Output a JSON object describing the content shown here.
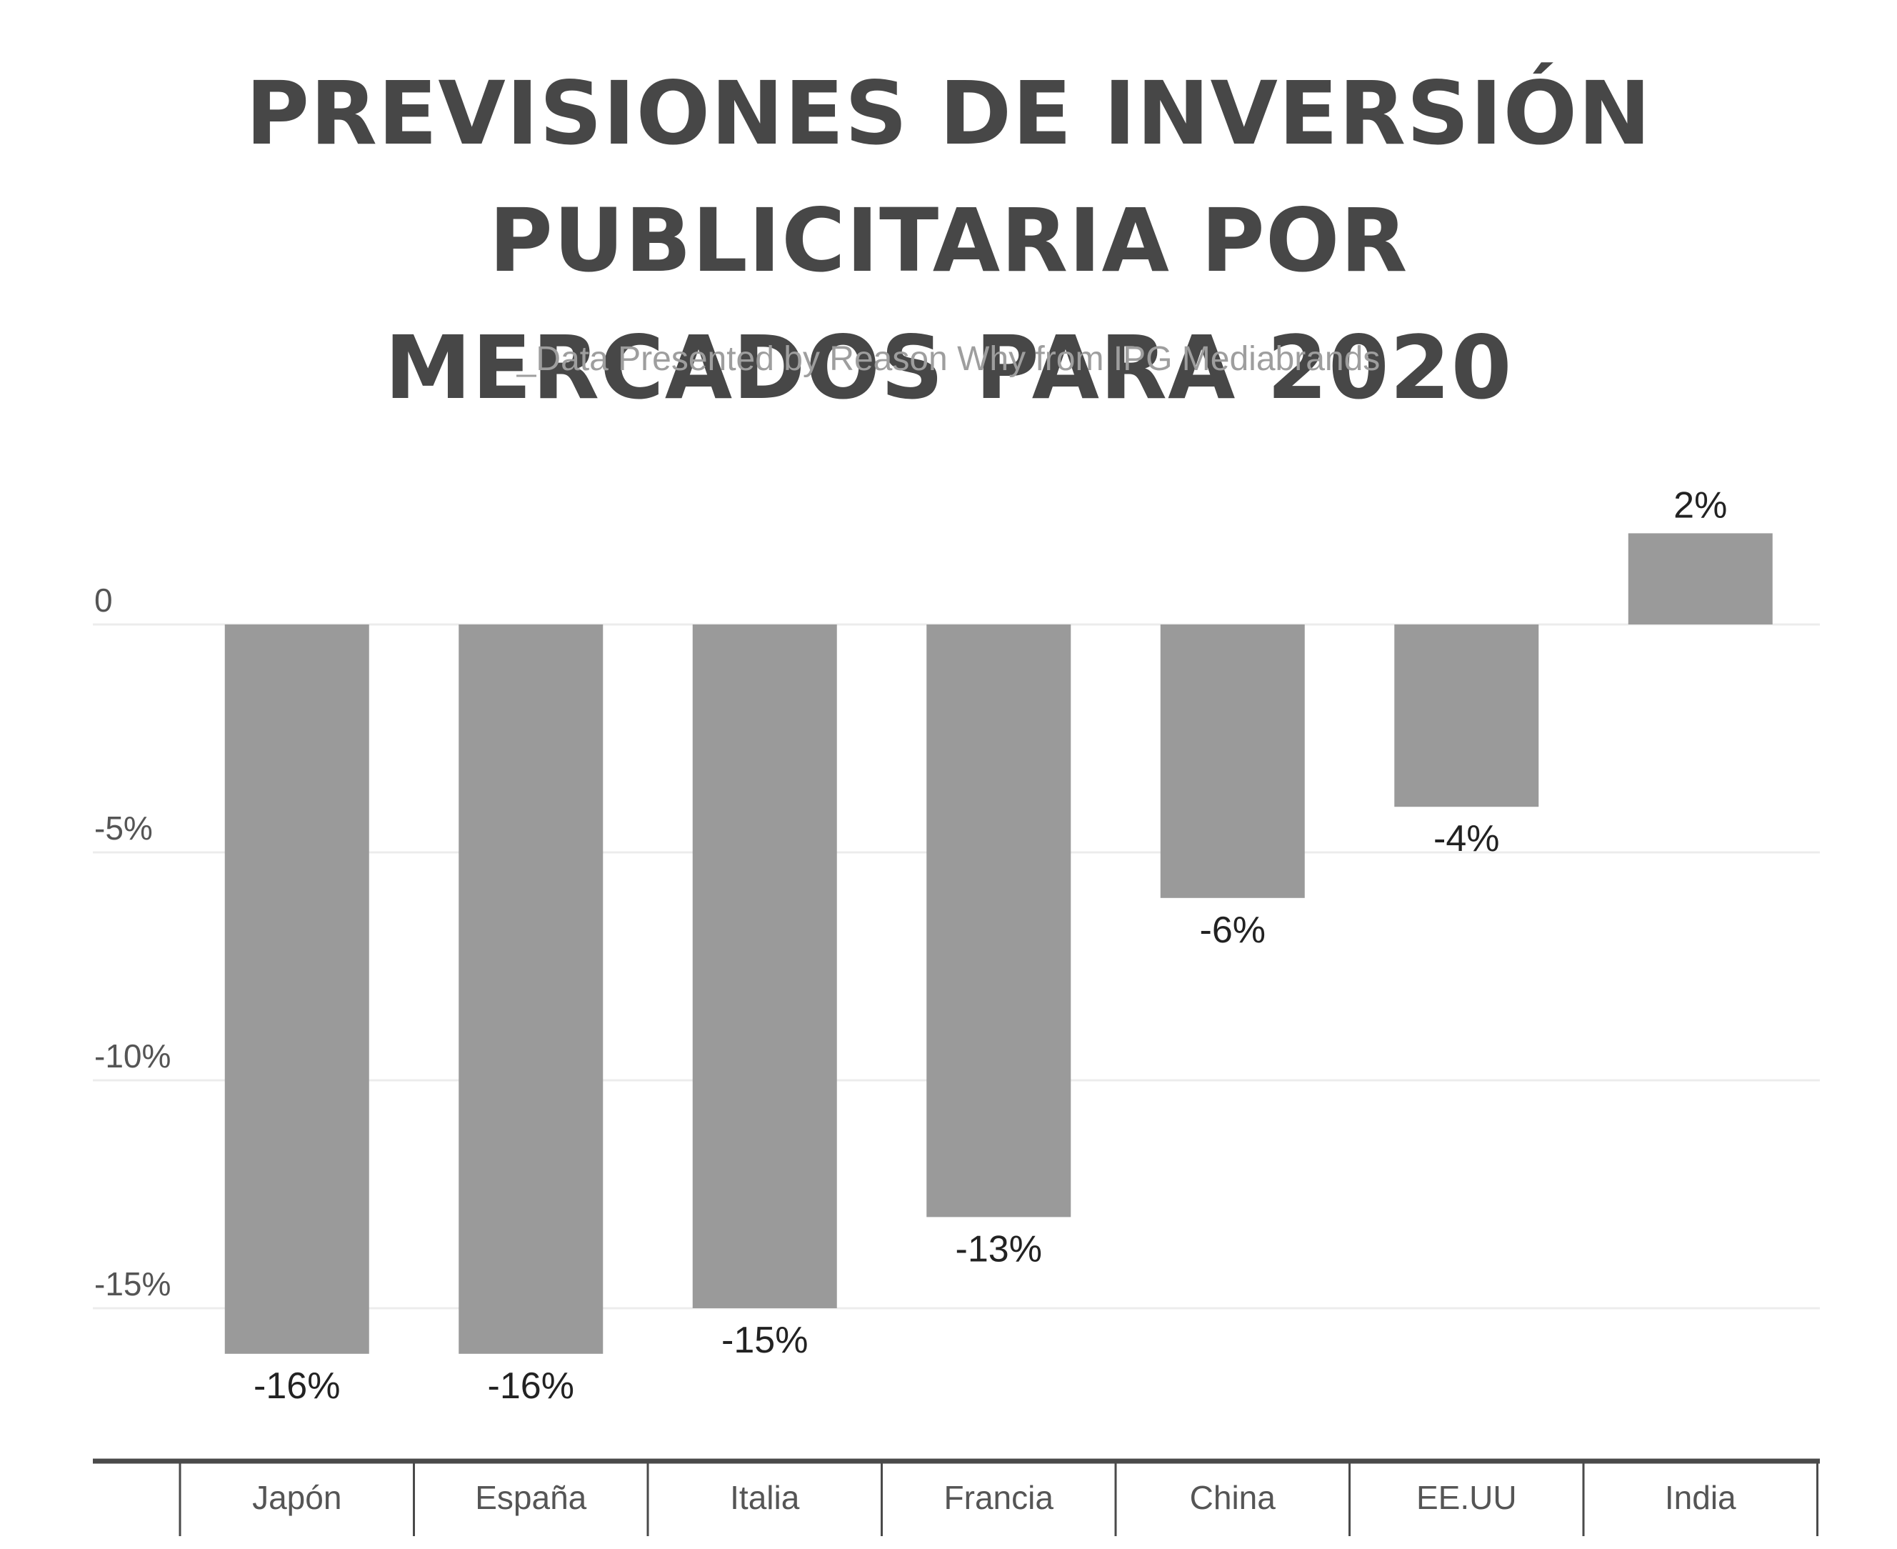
{
  "title": {
    "line1": "PREVISIONES DE INVERSIÓN PUBLICITARIA POR",
    "line2": "MERCADOS PARA 2020"
  },
  "subtitle": "_Data Presented by Reason Why from IPG Mediabrands",
  "colors": {
    "bar": "#9a9a9a",
    "title": "#474747",
    "subtitle": "#9e9e9e",
    "grid": "#ececec",
    "axis": "#4a4a4a"
  },
  "chart_data": {
    "type": "bar",
    "categories": [
      "Japón",
      "España",
      "Italia",
      "Francia",
      "China",
      "EE.UU",
      "India"
    ],
    "values": [
      -16,
      -16,
      -15,
      -13,
      -6,
      -4,
      2
    ],
    "value_labels": [
      "-16%",
      "-16%",
      "-15%",
      "-13%",
      "-6%",
      "-4%",
      "2%"
    ],
    "y_ticks": [
      0,
      -5,
      -10,
      -15
    ],
    "y_tick_labels": [
      "0",
      "-5%",
      "-10%",
      "-15%"
    ],
    "ylim": [
      -18,
      3
    ],
    "grid": true,
    "legend": "none"
  }
}
